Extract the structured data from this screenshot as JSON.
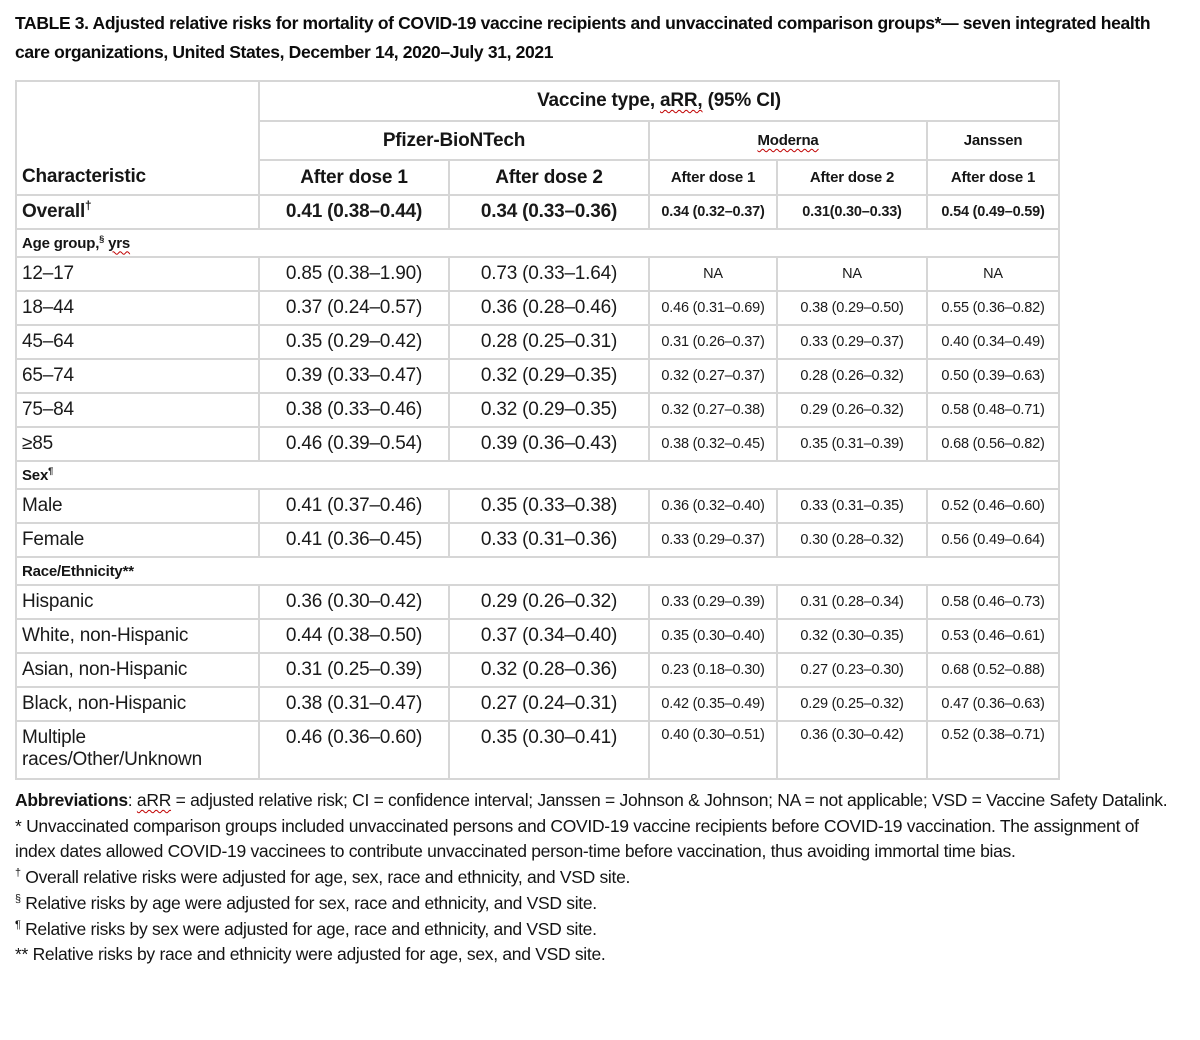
{
  "page": {
    "title": "TABLE 3. Adjusted relative risks for mortality of COVID-19 vaccine recipients and unvaccinated comparison groups*— seven integrated health care organizations, United States, December 14, 2020–July 31, 2021"
  },
  "table": {
    "header": {
      "characteristic": "Characteristic",
      "vaccine_type": {
        "prefix": "Vaccine type, ",
        "flagged": "aRR,",
        "suffix": " (95% CI)"
      },
      "brands": [
        {
          "label": "Pfizer-BioNTech"
        },
        {
          "label": "Moderna"
        },
        {
          "label": "Janssen"
        }
      ],
      "doses": [
        "After dose 1",
        "After dose 2",
        "After dose 1",
        "After dose 2",
        "After dose 1"
      ]
    },
    "rows": [
      {
        "kind": "data",
        "emph": true,
        "label": "Overall",
        "sup": "†",
        "values": [
          "0.41 (0.38–0.44)",
          "0.34 (0.33–0.36)",
          "0.34 (0.32–0.37)",
          "0.31(0.30–0.33)",
          "0.54 (0.49–0.59)"
        ]
      },
      {
        "kind": "section",
        "label": "Age group,",
        "sup": "§",
        "suffix": "yrs",
        "suffix_flagged": true
      },
      {
        "kind": "data",
        "label": "12–17",
        "values": [
          "0.85 (0.38–1.90)",
          "0.73 (0.33–1.64)",
          "NA",
          "NA",
          "NA"
        ]
      },
      {
        "kind": "data",
        "label": "18–44",
        "values": [
          "0.37 (0.24–0.57)",
          "0.36 (0.28–0.46)",
          "0.46 (0.31–0.69)",
          "0.38 (0.29–0.50)",
          "0.55 (0.36–0.82)"
        ]
      },
      {
        "kind": "data",
        "label": "45–64",
        "values": [
          "0.35 (0.29–0.42)",
          "0.28 (0.25–0.31)",
          "0.31 (0.26–0.37)",
          "0.33 (0.29–0.37)",
          "0.40 (0.34–0.49)"
        ]
      },
      {
        "kind": "data",
        "label": "65–74",
        "values": [
          "0.39 (0.33–0.47)",
          "0.32 (0.29–0.35)",
          "0.32 (0.27–0.37)",
          "0.28 (0.26–0.32)",
          "0.50 (0.39–0.63)"
        ]
      },
      {
        "kind": "data",
        "label": "75–84",
        "values": [
          "0.38 (0.33–0.46)",
          "0.32 (0.29–0.35)",
          "0.32 (0.27–0.38)",
          "0.29 (0.26–0.32)",
          "0.58 (0.48–0.71)"
        ]
      },
      {
        "kind": "data",
        "label": "≥85",
        "values": [
          "0.46 (0.39–0.54)",
          "0.39 (0.36–0.43)",
          "0.38 (0.32–0.45)",
          "0.35 (0.31–0.39)",
          "0.68 (0.56–0.82)"
        ]
      },
      {
        "kind": "section",
        "label": "Sex",
        "sup": "¶"
      },
      {
        "kind": "data",
        "label": "Male",
        "values": [
          "0.41 (0.37–0.46)",
          "0.35 (0.33–0.38)",
          "0.36 (0.32–0.40)",
          "0.33 (0.31–0.35)",
          "0.52 (0.46–0.60)"
        ]
      },
      {
        "kind": "data",
        "label": "Female",
        "values": [
          "0.41 (0.36–0.45)",
          "0.33 (0.31–0.36)",
          "0.33 (0.29–0.37)",
          "0.30 (0.28–0.32)",
          "0.56 (0.49–0.64)"
        ]
      },
      {
        "kind": "section",
        "label": "Race/Ethnicity**"
      },
      {
        "kind": "data",
        "label": "Hispanic",
        "values": [
          "0.36 (0.30–0.42)",
          "0.29 (0.26–0.32)",
          "0.33 (0.29–0.39)",
          "0.31 (0.28–0.34)",
          "0.58 (0.46–0.73)"
        ]
      },
      {
        "kind": "data",
        "label": "White, non-Hispanic",
        "values": [
          "0.44 (0.38–0.50)",
          "0.37 (0.34–0.40)",
          "0.35 (0.30–0.40)",
          "0.32 (0.30–0.35)",
          "0.53 (0.46–0.61)"
        ]
      },
      {
        "kind": "data",
        "label": "Asian, non-Hispanic",
        "values": [
          "0.31 (0.25–0.39)",
          "0.32 (0.28–0.36)",
          "0.23 (0.18–0.30)",
          "0.27 (0.23–0.30)",
          "0.68 (0.52–0.88)"
        ]
      },
      {
        "kind": "data",
        "label": "Black, non-Hispanic",
        "values": [
          "0.38 (0.31–0.47)",
          "0.27 (0.24–0.31)",
          "0.42 (0.35–0.49)",
          "0.29 (0.25–0.32)",
          "0.47 (0.36–0.63)"
        ]
      },
      {
        "kind": "data",
        "tall": true,
        "label": "Multiple races/Other/Unknown",
        "values": [
          "0.46 (0.36–0.60)",
          "0.35 (0.30–0.41)",
          "0.40 (0.30–0.51)",
          "0.36 (0.30–0.42)",
          "0.52 (0.38–0.71)"
        ]
      }
    ]
  },
  "footnotes": [
    {
      "parts": [
        {
          "t": "Abbreviations",
          "b": true
        },
        {
          "t": ": "
        },
        {
          "t": "aRR",
          "sq": true
        },
        {
          "t": " = adjusted relative risk; CI = confidence interval; Janssen = Johnson & Johnson; NA = not applicable; VSD = Vaccine Safety Datalink."
        }
      ]
    },
    {
      "parts": [
        {
          "t": "* Unvaccinated comparison groups included unvaccinated persons and COVID-19 vaccine recipients before COVID-19 vaccination. The assignment of index dates allowed COVID-19 vaccinees to contribute unvaccinated person-time before vaccination, thus avoiding immortal time bias."
        }
      ]
    },
    {
      "parts": [
        {
          "t": "†",
          "sup": true
        },
        {
          "t": " Overall relative risks were adjusted for age, sex, race and ethnicity, and VSD site."
        }
      ]
    },
    {
      "parts": [
        {
          "t": "§",
          "sup": true
        },
        {
          "t": " Relative risks by age were adjusted for sex, race and ethnicity, and VSD site."
        }
      ]
    },
    {
      "parts": [
        {
          "t": "¶",
          "sup": true
        },
        {
          "t": " Relative risks by sex were adjusted for age, race and ethnicity, and VSD site."
        }
      ]
    },
    {
      "parts": [
        {
          "t": "** Relative risks by race and ethnicity were adjusted for age, sex, and VSD site."
        }
      ]
    }
  ]
}
